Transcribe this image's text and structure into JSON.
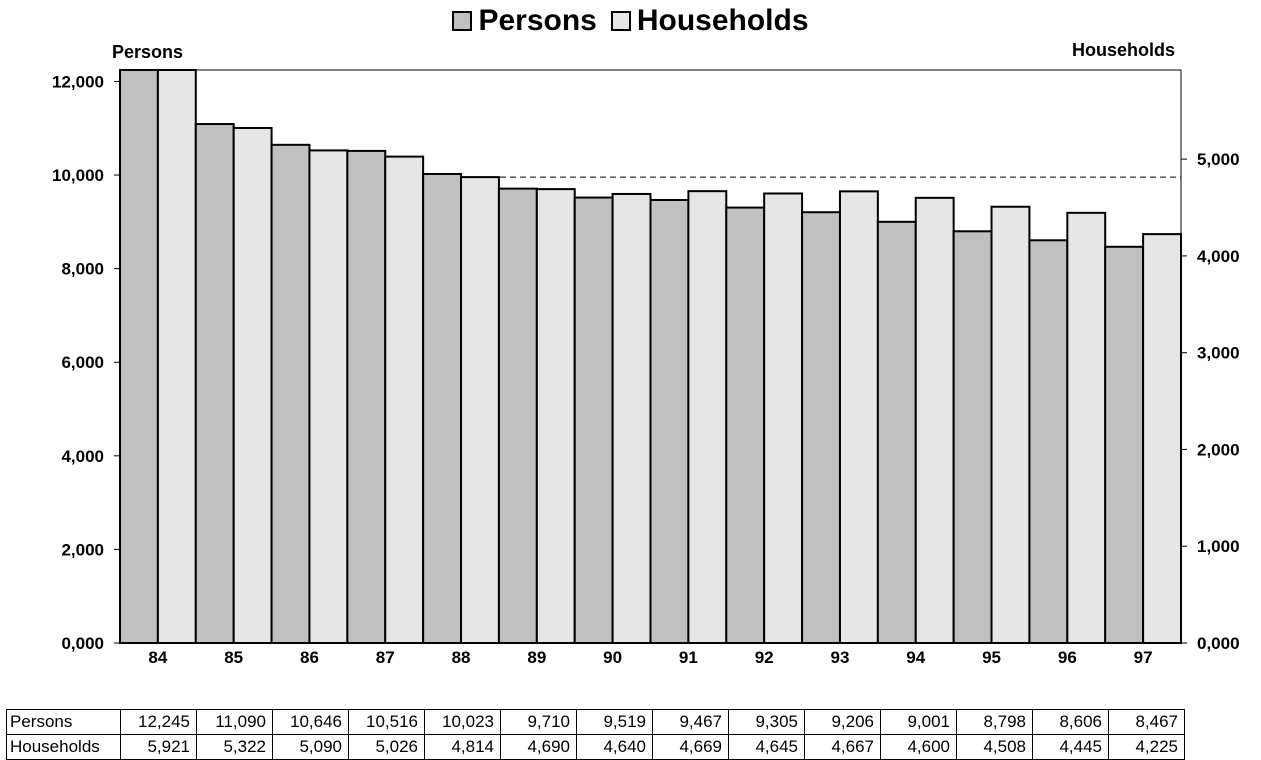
{
  "legend": {
    "persons_label": "Persons",
    "households_label": "Households"
  },
  "colors": {
    "persons_bar": "#c0c0c0",
    "households_bar": "#e6e6e6",
    "outline": "#000000",
    "background": "#ffffff"
  },
  "chart_data": {
    "type": "bar",
    "categories": [
      "84",
      "85",
      "86",
      "87",
      "88",
      "89",
      "90",
      "91",
      "92",
      "93",
      "94",
      "95",
      "96",
      "97"
    ],
    "series": [
      {
        "name": "Persons",
        "axis": "left",
        "values": [
          12245,
          11090,
          10646,
          10516,
          10023,
          9710,
          9519,
          9467,
          9305,
          9206,
          9001,
          8798,
          8606,
          8467
        ]
      },
      {
        "name": "Households",
        "axis": "right",
        "values": [
          5921,
          5322,
          5090,
          5026,
          4814,
          4690,
          4640,
          4669,
          4645,
          4667,
          4600,
          4508,
          4445,
          4225
        ]
      }
    ],
    "left_axis": {
      "label": "Persons",
      "ylim": [
        0,
        12245
      ],
      "ticks": [
        0,
        2000,
        4000,
        6000,
        8000,
        10000,
        12000
      ],
      "tick_labels": [
        "0,000",
        "2,000",
        "4,000",
        "6,000",
        "8,000",
        "10,000",
        "12,000"
      ]
    },
    "right_axis": {
      "label": "Households",
      "ylim": [
        0,
        5921
      ],
      "ticks": [
        0,
        1000,
        2000,
        3000,
        4000,
        5000
      ],
      "tick_labels": [
        "0,000",
        "1,000",
        "2,000",
        "3,000",
        "4,000",
        "5,000"
      ]
    },
    "reference_lines": [
      {
        "axis": "right",
        "value": 5921,
        "style": "dashed"
      },
      {
        "axis": "right",
        "value": 4814,
        "style": "dashed"
      }
    ],
    "legend_position": "top-center",
    "grid": false
  },
  "table": {
    "rows": [
      {
        "label": "Persons",
        "values": [
          "12,245",
          "11,090",
          "10,646",
          "10,516",
          "10,023",
          "9,710",
          "9,519",
          "9,467",
          "9,305",
          "9,206",
          "9,001",
          "8,798",
          "8,606",
          "8,467"
        ]
      },
      {
        "label": "Households",
        "values": [
          "5,921",
          "5,322",
          "5,090",
          "5,026",
          "4,814",
          "4,690",
          "4,640",
          "4,669",
          "4,645",
          "4,667",
          "4,600",
          "4,508",
          "4,445",
          "4,225"
        ]
      }
    ]
  }
}
